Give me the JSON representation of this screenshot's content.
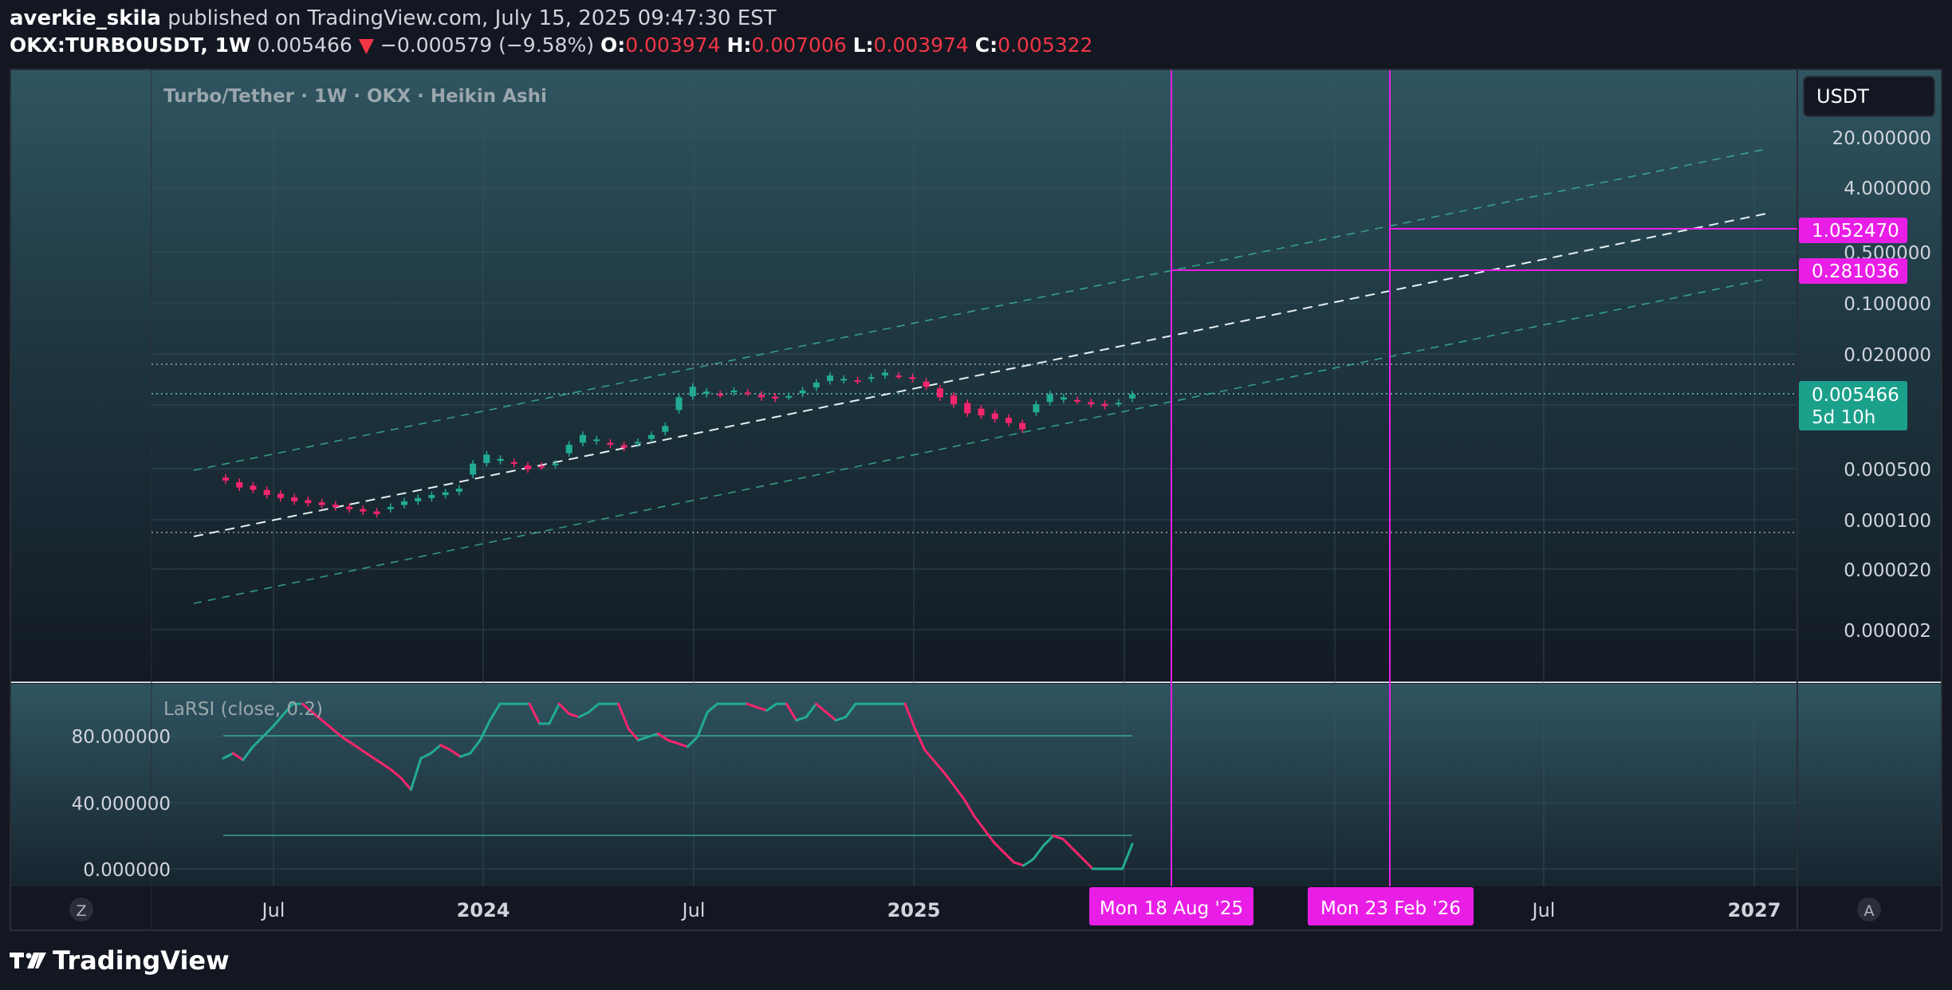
{
  "header": {
    "publisher": "averkie_skila",
    "published_text": "published on TradingView.com, July 15, 2025 09:47:30 EST",
    "symbol": "OKX:TURBOUSDT, 1W",
    "price": "0.005466",
    "arrow": "▼",
    "change": "−0.000579 (−9.58%)",
    "open_label": "O:",
    "open": "0.003974",
    "high_label": "H:",
    "high": "0.007006",
    "low_label": "L:",
    "low": "0.003974",
    "close_label": "C:",
    "close": "0.005322"
  },
  "chart": {
    "legend": "Turbo/Tether · 1W · OKX · Heikin Ashi",
    "currency": "USDT",
    "price_ticks": [
      "20.000000",
      "4.000000",
      "0.500000",
      "0.100000",
      "0.020000",
      "0.000500",
      "0.000100",
      "0.000020",
      "0.000002"
    ],
    "markers": [
      {
        "label": "1.052470",
        "color": "#e91ee6"
      },
      {
        "label": "0.281036",
        "color": "#e91ee6"
      }
    ],
    "last_price": {
      "label": "0.005466",
      "countdown": "5d 10h",
      "color": "#1ba08b"
    },
    "time_labels": [
      "Jul",
      "2024",
      "Jul",
      "2025",
      "Jul",
      "2027"
    ],
    "vline_labels": [
      "Mon 18 Aug '25",
      "Mon 23 Feb '26"
    ],
    "scale_buttons": [
      "Z",
      "A"
    ]
  },
  "indicator": {
    "legend": "LaRSI (close, 0.2)",
    "ticks": [
      "80.000000",
      "40.000000",
      "0.000000"
    ]
  },
  "chart_data": {
    "type": "line",
    "title": "Turbo/Tether · 1W · OKX · Heikin Ashi",
    "note_visible_scale": "log",
    "candles_ha_close_approx": [
      0.00035,
      0.00028,
      0.00026,
      0.00022,
      0.0002,
      0.00018,
      0.00017,
      0.00016,
      0.00015,
      0.00014,
      0.00013,
      0.00012,
      0.00015,
      0.00018,
      0.0002,
      0.00022,
      0.00024,
      0.00027,
      0.0006,
      0.0008,
      0.0007,
      0.0006,
      0.0005,
      0.00055,
      0.0006,
      0.0011,
      0.0015,
      0.0013,
      0.0011,
      0.001,
      0.0012,
      0.0015,
      0.002,
      0.005,
      0.007,
      0.006,
      0.0055,
      0.0062,
      0.0058,
      0.005,
      0.0048,
      0.0052,
      0.0062,
      0.008,
      0.01,
      0.009,
      0.0085,
      0.0095,
      0.011,
      0.01,
      0.009,
      0.007,
      0.005,
      0.004,
      0.003,
      0.0028,
      0.0025,
      0.0022,
      0.0018,
      0.004,
      0.0055,
      0.005,
      0.0045,
      0.004,
      0.0038,
      0.0042,
      0.0055
    ],
    "series": [
      {
        "name": "LaRSI (close, 0.2)",
        "values": [
          67,
          70,
          66,
          74,
          80,
          86,
          93,
          100,
          100,
          95,
          90,
          85,
          80,
          76,
          72,
          68,
          64,
          60,
          55,
          48,
          67,
          70,
          75,
          72,
          68,
          70,
          78,
          90,
          100,
          100,
          100,
          100,
          88,
          88,
          100,
          94,
          92,
          95,
          100,
          100,
          100,
          85,
          78,
          80,
          82,
          78,
          76,
          74,
          80,
          95,
          100,
          100,
          100,
          100,
          98,
          96,
          100,
          100,
          90,
          92,
          100,
          95,
          90,
          92,
          100,
          100,
          100,
          100,
          100,
          100,
          85,
          72,
          65,
          58,
          50,
          42,
          32,
          24,
          16,
          10,
          4,
          2,
          6,
          14,
          20,
          18,
          12,
          6,
          0,
          0,
          0,
          0,
          15
        ]
      }
    ],
    "ylim_indicator": [
      0,
      100
    ]
  }
}
